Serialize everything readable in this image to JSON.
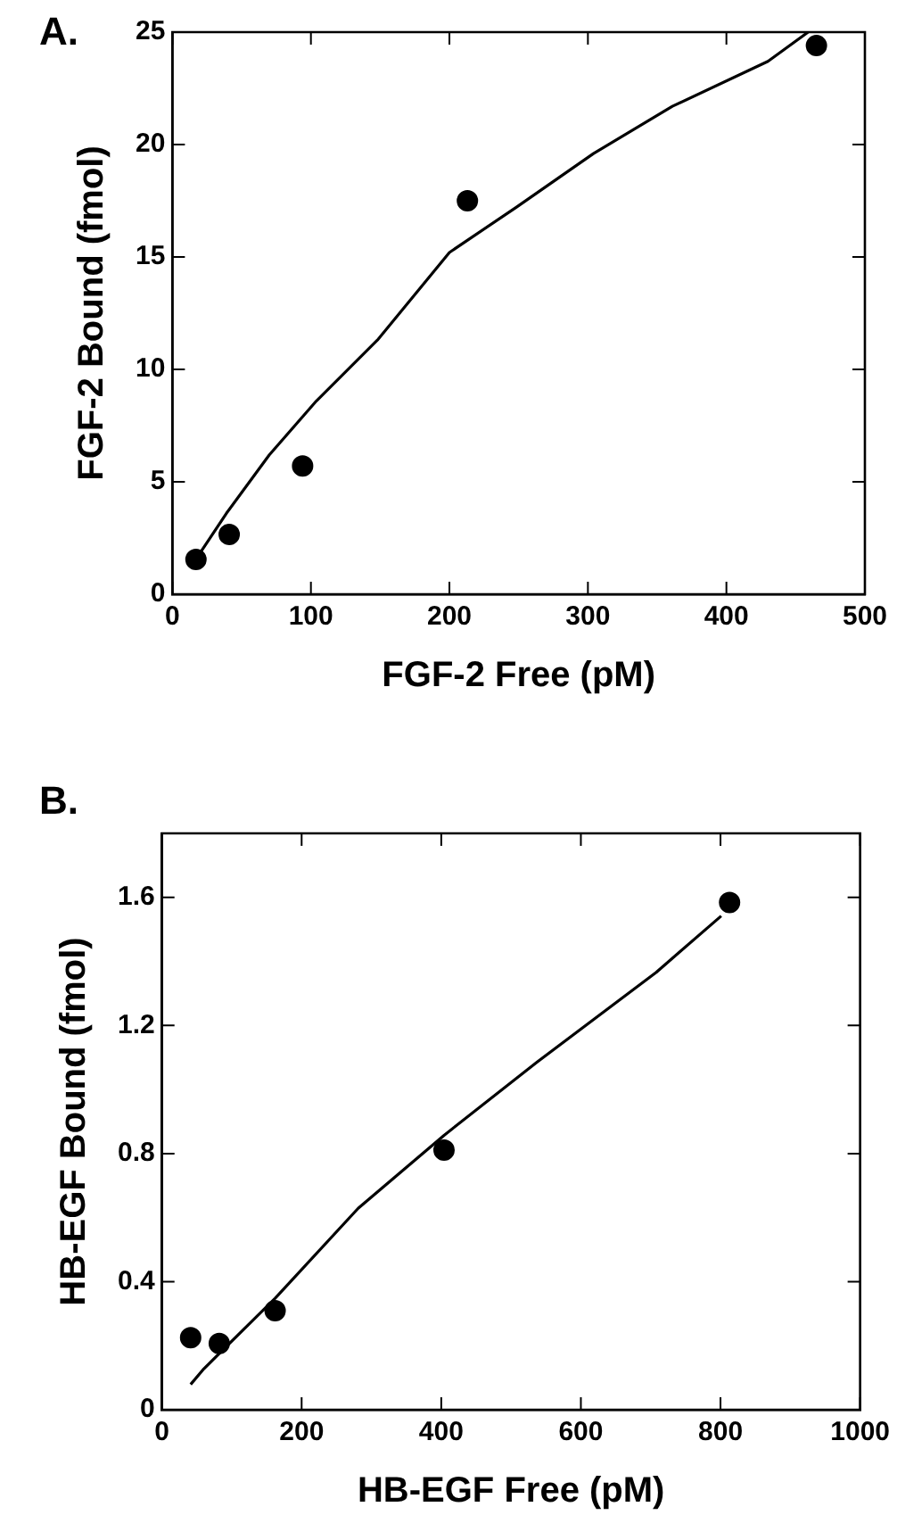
{
  "chart_data": [
    {
      "type": "scatter",
      "annotations": [
        "A."
      ],
      "xlabel": "FGF-2 Free (pM)",
      "ylabel": "FGF-2 Bound (fmol)",
      "x": [
        17,
        41,
        94,
        213,
        465
      ],
      "series": [
        {
          "color": "#000000",
          "marker": "circle",
          "values": [
            1.55,
            2.66,
            5.7,
            17.5,
            24.4
          ]
        },
        {
          "type": "line",
          "color": "#000000",
          "marker": "none",
          "line_style": "solid",
          "x": [
            19.6,
            39,
            70,
            104,
            148,
            200,
            248,
            304,
            361,
            430,
            459
          ],
          "values": [
            1.8,
            3.6,
            6.2,
            8.6,
            11.3,
            15.2,
            17.2,
            19.6,
            21.7,
            23.7,
            25
          ]
        }
      ],
      "xlim": [
        0,
        500
      ],
      "xticks": [
        0,
        100,
        200,
        300,
        400,
        500
      ],
      "ylim": [
        0,
        25
      ],
      "yticks": [
        0,
        5,
        10,
        15,
        20,
        25
      ],
      "grid": false,
      "legend": false
    },
    {
      "type": "scatter",
      "annotations": [
        "B."
      ],
      "xlabel": "HB-EGF Free (pM)",
      "ylabel": "HB-EGF Bound (fmol)",
      "x": [
        41,
        82,
        162,
        404,
        813
      ],
      "series": [
        {
          "color": "#000000",
          "marker": "circle",
          "values": [
            0.225,
            0.207,
            0.309,
            0.811,
            1.584
          ]
        },
        {
          "type": "line",
          "color": "#000000",
          "marker": "none",
          "line_style": "solid",
          "x": [
            41,
            60,
            162,
            281,
            404,
            537,
            708,
            801
          ],
          "values": [
            0.079,
            0.128,
            0.348,
            0.629,
            0.857,
            1.085,
            1.366,
            1.542
          ]
        }
      ],
      "xlim": [
        0,
        1000
      ],
      "xticks": [
        0,
        200,
        400,
        600,
        800,
        1000
      ],
      "ylim": [
        0,
        1.8
      ],
      "yticks": [
        0,
        0.4,
        0.8,
        1.2,
        1.6
      ],
      "grid": false,
      "legend": false
    }
  ]
}
